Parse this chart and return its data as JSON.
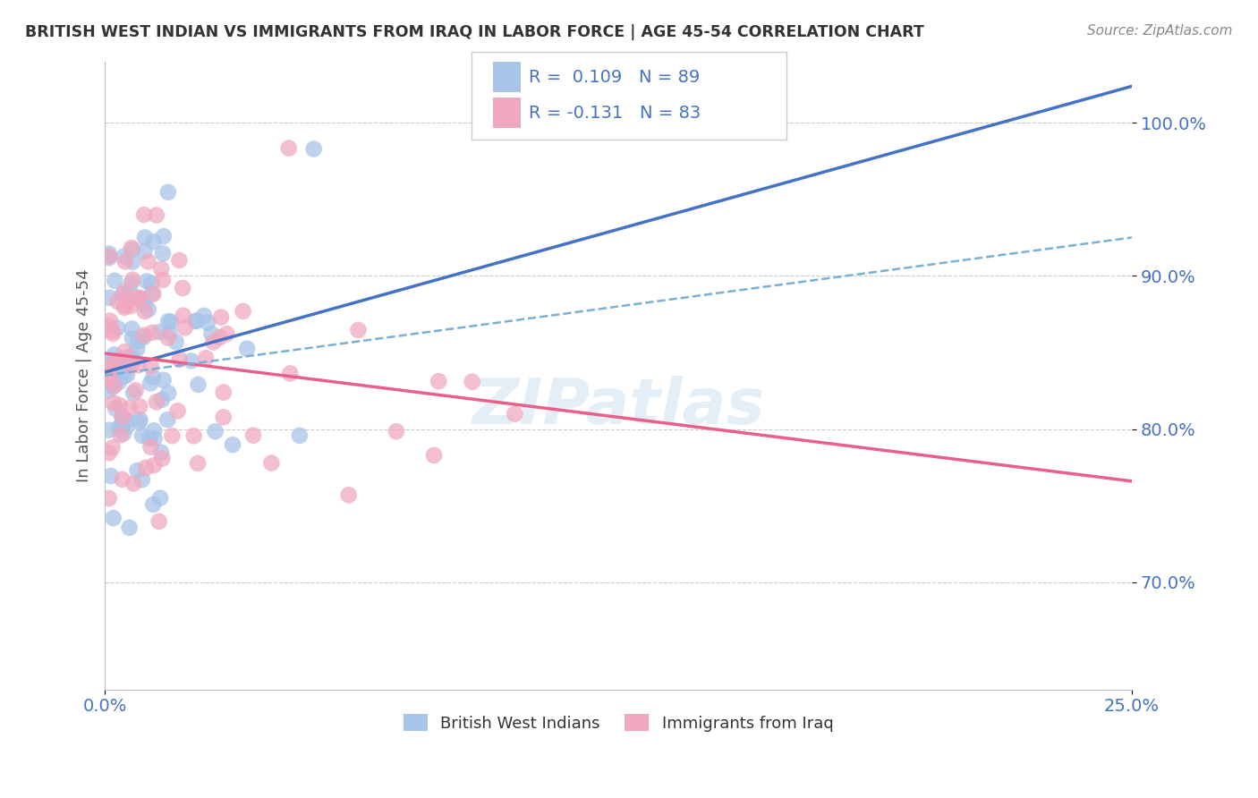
{
  "title": "BRITISH WEST INDIAN VS IMMIGRANTS FROM IRAQ IN LABOR FORCE | AGE 45-54 CORRELATION CHART",
  "source": "Source: ZipAtlas.com",
  "ylabel": "In Labor Force | Age 45-54",
  "xlim": [
    0.0,
    0.25
  ],
  "ylim": [
    0.63,
    1.04
  ],
  "x_ticks": [
    0.0,
    0.25
  ],
  "x_tick_labels": [
    "0.0%",
    "25.0%"
  ],
  "y_ticks": [
    0.7,
    0.8,
    0.9,
    1.0
  ],
  "y_tick_labels": [
    "70.0%",
    "80.0%",
    "90.0%",
    "100.0%"
  ],
  "blue_R": 0.109,
  "blue_N": 89,
  "pink_R": -0.131,
  "pink_N": 83,
  "blue_color": "#a8c4e8",
  "pink_color": "#f0a8c0",
  "blue_line_color": "#4472C4",
  "pink_line_color": "#e8608a",
  "dash_line_color": "#7ab0d4",
  "grid_color": "#cccccc",
  "title_color": "#333333",
  "tick_color": "#4472C4",
  "watermark": "ZIPatlas",
  "legend_label_color": "#4472C4"
}
